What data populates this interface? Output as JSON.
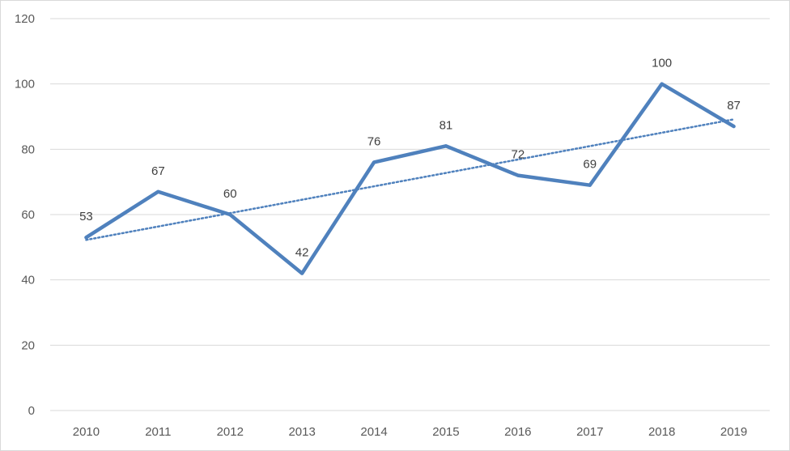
{
  "chart_data": {
    "type": "line",
    "title": "",
    "xlabel": "",
    "ylabel": "",
    "categories": [
      "2010",
      "2011",
      "2012",
      "2013",
      "2014",
      "2015",
      "2016",
      "2017",
      "2018",
      "2019"
    ],
    "series": [
      {
        "values": [
          53,
          67,
          60,
          42,
          76,
          81,
          72,
          69,
          100,
          87
        ],
        "color": "#4f81bd",
        "data_labels": true
      }
    ],
    "trendline": {
      "type": "linear",
      "style": "dotted",
      "color": "#4f81bd"
    },
    "ylim": [
      0,
      120
    ],
    "yticks": [
      0,
      20,
      40,
      60,
      80,
      100,
      120
    ],
    "grid": "horizontal",
    "gridline_color": "#d9d9d9",
    "legend": "none"
  }
}
